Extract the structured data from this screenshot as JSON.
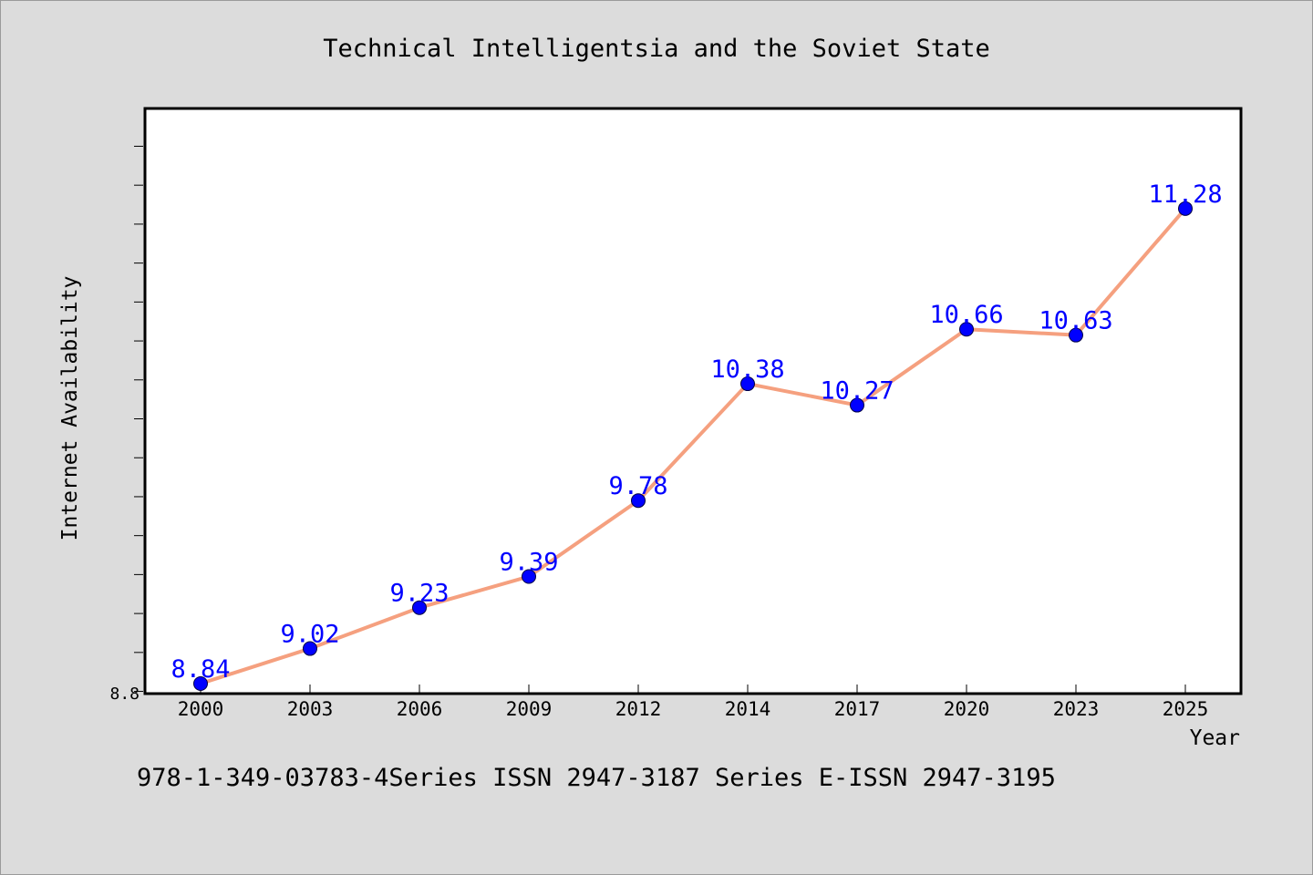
{
  "chart_data": {
    "type": "line",
    "title": "Technical Intelligentsia and the Soviet State",
    "xlabel": "Year",
    "ylabel": "Internet Availability",
    "categories": [
      "2000",
      "2003",
      "2006",
      "2009",
      "2012",
      "2014",
      "2017",
      "2020",
      "2023",
      "2025"
    ],
    "series": [
      {
        "values": [
          8.84,
          9.02,
          9.23,
          9.39,
          9.78,
          10.38,
          10.27,
          10.66,
          10.63,
          11.28
        ],
        "line_color": "#f5a07f",
        "marker_color": "#0000ff"
      }
    ],
    "data_labels": [
      "8.84",
      "9.02",
      "9.23",
      "9.39",
      "9.78",
      "10.38",
      "10.27",
      "10.66",
      "10.63",
      "11.28"
    ],
    "y_tick_label": "8.8",
    "ylim": [
      8.8,
      11.8
    ],
    "grid": false,
    "legend": "none"
  },
  "footer": {
    "text": "978-1-349-03783-4Series ISSN 2947-3187 Series E-ISSN 2947-3195"
  }
}
